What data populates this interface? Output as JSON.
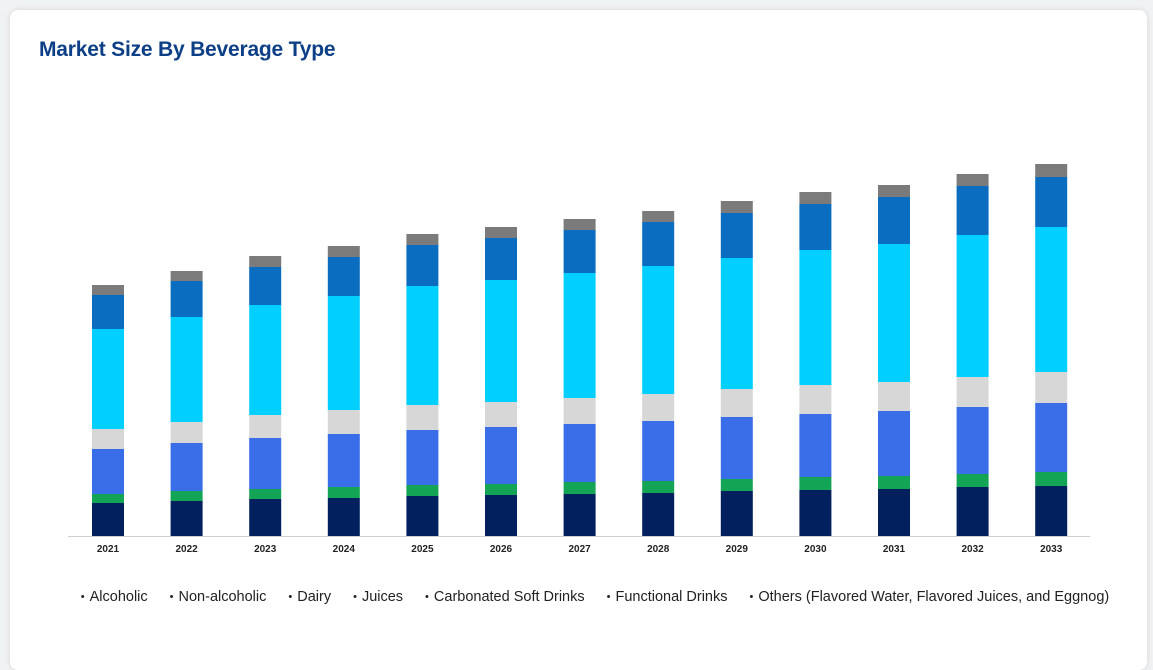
{
  "title": "Market Size By Beverage Type",
  "chart_data": {
    "type": "bar",
    "stacked": true,
    "categories": [
      "2021",
      "2022",
      "2023",
      "2024",
      "2025",
      "2026",
      "2027",
      "2028",
      "2029",
      "2030",
      "2031",
      "2032",
      "2033"
    ],
    "series": [
      {
        "name": "Alcoholic",
        "color": "#02205e",
        "values": [
          33,
          35,
          37,
          38,
          40,
          41,
          42,
          43,
          45,
          46,
          47,
          49,
          50
        ]
      },
      {
        "name": "Non-alcoholic",
        "color": "#13a555",
        "values": [
          9,
          10,
          10,
          11,
          11,
          11,
          12,
          12,
          12,
          13,
          13,
          13,
          14
        ]
      },
      {
        "name": "Dairy",
        "color": "#3a6ee8",
        "values": [
          45,
          48,
          51,
          53,
          55,
          57,
          58,
          60,
          62,
          63,
          65,
          67,
          69
        ]
      },
      {
        "name": "Juices",
        "color": "#d7d7d7",
        "values": [
          20,
          21,
          23,
          24,
          25,
          25,
          26,
          27,
          28,
          29,
          29,
          30,
          31
        ]
      },
      {
        "name": "Carbonated Soft Drinks",
        "color": "#00cfff",
        "values": [
          100,
          105,
          110,
          114,
          119,
          122,
          125,
          128,
          131,
          135,
          138,
          142,
          145
        ]
      },
      {
        "name": "Functional Drinks",
        "color": "#0a6dbf",
        "values": [
          34,
          36,
          38,
          39,
          41,
          42,
          43,
          44,
          45,
          46,
          47,
          49,
          50
        ]
      },
      {
        "name": "Others (Flavored Water, Flavored Juices, and Eggnog)",
        "color": "#7b7b7b",
        "values": [
          10,
          10,
          11,
          11,
          11,
          11,
          11,
          11,
          12,
          12,
          12,
          12,
          13
        ]
      }
    ],
    "xlabel": "",
    "ylabel": "",
    "ylim": [
      0,
      400
    ],
    "grid": false,
    "legend_position": "bottom"
  }
}
